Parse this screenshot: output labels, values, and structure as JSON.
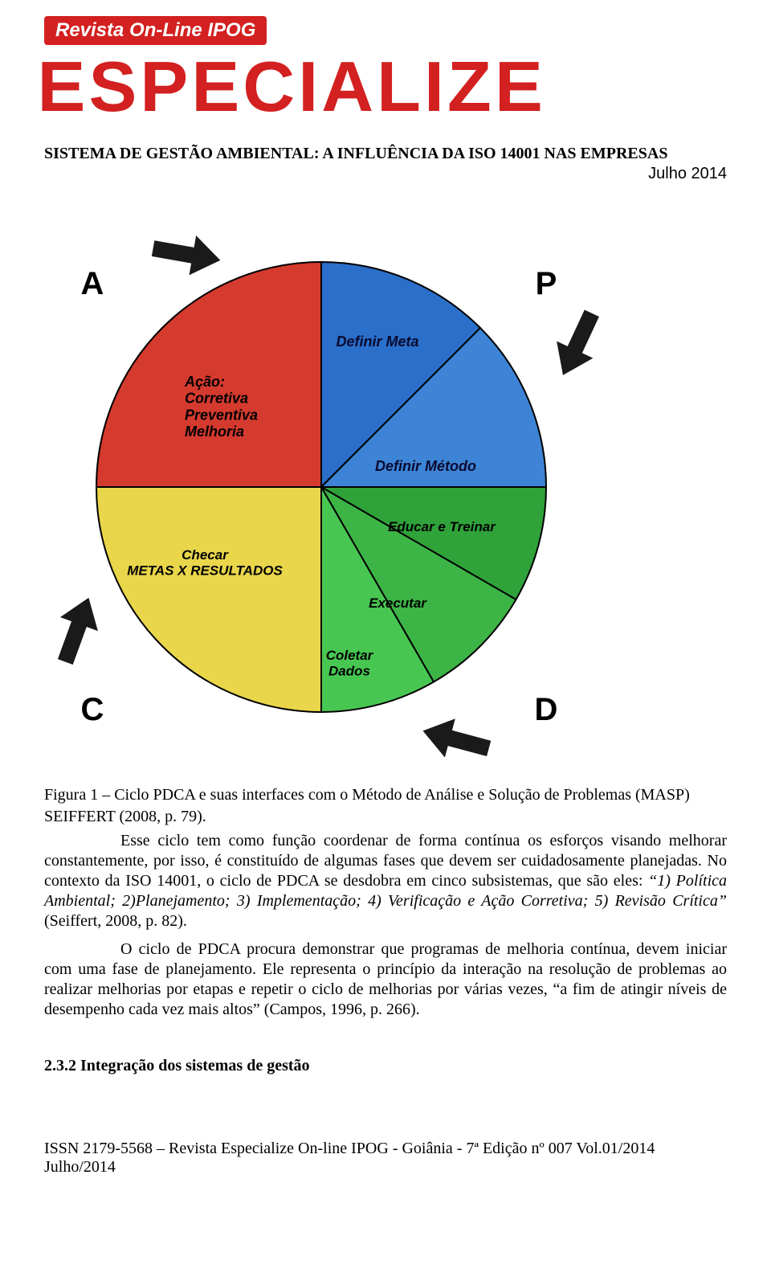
{
  "header": {
    "banner": "Revista On-Line IPOG",
    "brand": "ESPECIALIZE",
    "article_title": "SISTEMA DE GESTÃO AMBIENTAL: A INFLUÊNCIA DA ISO 14001 NAS EMPRESAS",
    "date": "Julho 2014"
  },
  "pdca_diagram": {
    "type": "pie-quadrant-cycle",
    "radius": 280,
    "background": "#ffffff",
    "stroke_color": "#000000",
    "stroke_width": 2,
    "corner_labels": {
      "top_left": "A",
      "top_right": "P",
      "bottom_left": "C",
      "bottom_right": "D",
      "font_size": 40,
      "font_weight": "bold",
      "color": "#000000"
    },
    "arrows": {
      "color": "#1a1a1a",
      "positions": [
        "top-left-to-right",
        "right-top-to-bottom",
        "bottom-right-to-left",
        "left-bottom-to-top"
      ]
    },
    "slices": [
      {
        "id": "P1",
        "start_deg": -90,
        "end_deg": -45,
        "fill": "#2a6fc9",
        "label": "Definir Meta",
        "label_color": "#0a0a30",
        "label_font_size": 18,
        "label_font_weight": "bold",
        "label_font_style": "italic"
      },
      {
        "id": "P2",
        "start_deg": -45,
        "end_deg": 0,
        "fill": "#3d84d6",
        "label": "Definir Método",
        "label_color": "#0a0a30",
        "label_font_size": 18,
        "label_font_weight": "bold",
        "label_font_style": "italic"
      },
      {
        "id": "D1",
        "start_deg": 0,
        "end_deg": 30,
        "fill": "#2fa23a",
        "label": "Educar e Treinar",
        "label_color": "#000000",
        "label_font_size": 17,
        "label_font_weight": "bold",
        "label_font_style": "italic"
      },
      {
        "id": "D2",
        "start_deg": 30,
        "end_deg": 60,
        "fill": "#3cb446",
        "label": "Executar",
        "label_color": "#000000",
        "label_font_size": 17,
        "label_font_weight": "bold",
        "label_font_style": "italic"
      },
      {
        "id": "D3",
        "start_deg": 60,
        "end_deg": 90,
        "fill": "#48c652",
        "label": "Coletar Dados",
        "label_color": "#000000",
        "label_font_size": 17,
        "label_font_weight": "bold",
        "label_font_style": "italic"
      },
      {
        "id": "C",
        "start_deg": 90,
        "end_deg": 180,
        "fill": "#e9d64a",
        "label_lines": [
          "Checar",
          "METAS X RESULTADOS"
        ],
        "label_color": "#000000",
        "label_font_size": 17,
        "label_font_weight": "bold",
        "label_font_style": "italic"
      },
      {
        "id": "A",
        "start_deg": 180,
        "end_deg": 270,
        "fill": "#d53a2e",
        "label_lines": [
          "Ação:",
          "Corretiva",
          "Preventiva",
          "Melhoria"
        ],
        "label_color": "#000000",
        "label_font_size": 18,
        "label_font_weight": "bold",
        "label_font_style": "italic"
      }
    ]
  },
  "figure_caption_1": "Figura 1 – Ciclo PDCA e suas interfaces com o Método de Análise e Solução de Problemas (MASP) SEIFFERT (2008, p. 79).",
  "para1_a": "Esse ciclo tem como função coordenar de forma contínua os esforços visando melhorar constantemente, por isso, é constituído de algumas fases que devem ser cuidadosamente planejadas. No contexto da ISO 14001, o ciclo de PDCA se desdobra em cinco subsistemas, que são eles: ",
  "para1_i": "“1) Política Ambiental; 2)Planejamento; 3) Implementação; 4) Verificação e Ação Corretiva; 5) Revisão Crítica”",
  "para1_b": " (Seiffert, 2008, p. 82).",
  "para2": "O ciclo de PDCA procura demonstrar que programas de melhoria contínua, devem iniciar com uma fase de planejamento. Ele representa o princípio da interação na resolução de problemas ao realizar melhorias por etapas e repetir o ciclo de melhorias por várias vezes, “a fim de atingir níveis de desempenho cada vez mais altos” (Campos, 1996, p. 266).",
  "section_heading": "2.3.2 Integração dos sistemas de gestão",
  "footer": "ISSN 2179-5568 – Revista Especialize On-line IPOG - Goiânia - 7ª Edição nº 007 Vol.01/2014 Julho/2014"
}
